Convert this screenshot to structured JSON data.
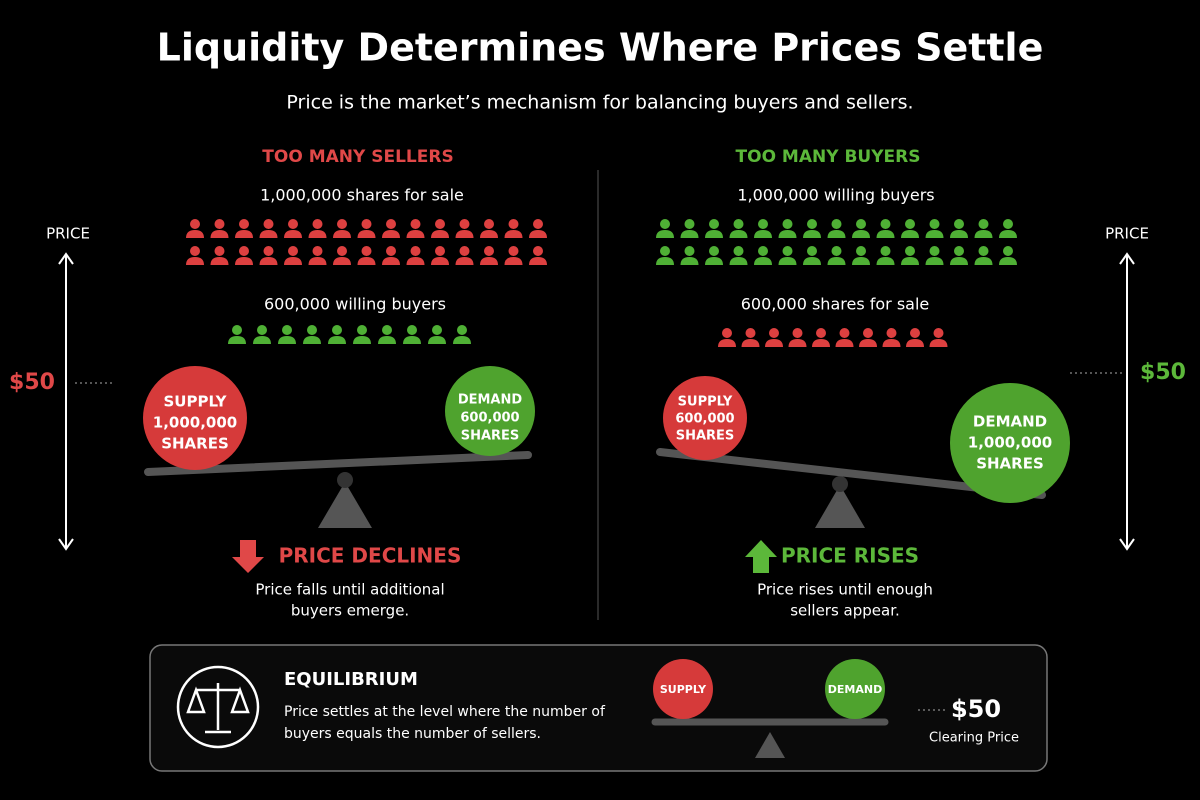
{
  "header": {
    "title": "Liquidity Determines Where Prices Settle",
    "subtitle": "Price is the market’s mechanism for balancing buyers and sellers."
  },
  "left": {
    "heading": "TOO MANY SELLERS",
    "top_label": "1,000,000 shares for sale",
    "bottom_label": "600,000 willing buyers",
    "axis_label": "PRICE",
    "price": "$50",
    "supply": [
      "SUPPLY",
      "1,000,000",
      "SHARES"
    ],
    "demand": [
      "DEMAND",
      "600,000",
      "SHARES"
    ],
    "outcome": "PRICE DECLINES",
    "note": [
      "Price falls until additional",
      "buyers emerge."
    ]
  },
  "right": {
    "heading": "TOO MANY BUYERS",
    "top_label": "1,000,000 willing buyers",
    "bottom_label": "600,000 shares for sale",
    "axis_label": "PRICE",
    "price": "$50",
    "supply": [
      "SUPPLY",
      "600,000",
      "SHARES"
    ],
    "demand": [
      "DEMAND",
      "1,000,000",
      "SHARES"
    ],
    "outcome": "PRICE RISES",
    "note": [
      "Price rises until enough",
      "sellers appear."
    ]
  },
  "equilibrium": {
    "title": "EQUILIBRIUM",
    "text": [
      "Price settles at the level where the number of",
      "buyers equals the number of sellers."
    ],
    "supply": "SUPPLY",
    "demand": "DEMAND",
    "price": "$50",
    "price_label": "Clearing Price"
  }
}
